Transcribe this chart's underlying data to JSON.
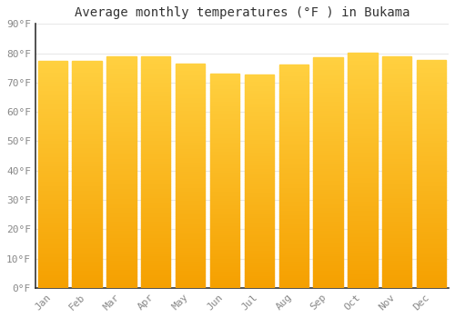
{
  "title": "Average monthly temperatures (°F ) in Bukama",
  "months": [
    "Jan",
    "Feb",
    "Mar",
    "Apr",
    "May",
    "Jun",
    "Jul",
    "Aug",
    "Sep",
    "Oct",
    "Nov",
    "Dec"
  ],
  "values": [
    77.5,
    77.5,
    78.8,
    79.0,
    76.6,
    73.2,
    72.7,
    76.3,
    78.6,
    80.2,
    79.0,
    77.7
  ],
  "bar_color_bottom": "#F5A000",
  "bar_color_top": "#FFD040",
  "background_color": "#FFFFFF",
  "grid_color": "#E8E8E8",
  "ylim": [
    0,
    90
  ],
  "yticks": [
    0,
    10,
    20,
    30,
    40,
    50,
    60,
    70,
    80,
    90
  ],
  "ytick_labels": [
    "0°F",
    "10°F",
    "20°F",
    "30°F",
    "40°F",
    "50°F",
    "60°F",
    "70°F",
    "80°F",
    "90°F"
  ],
  "title_fontsize": 10,
  "tick_fontsize": 8,
  "bar_width": 0.85
}
